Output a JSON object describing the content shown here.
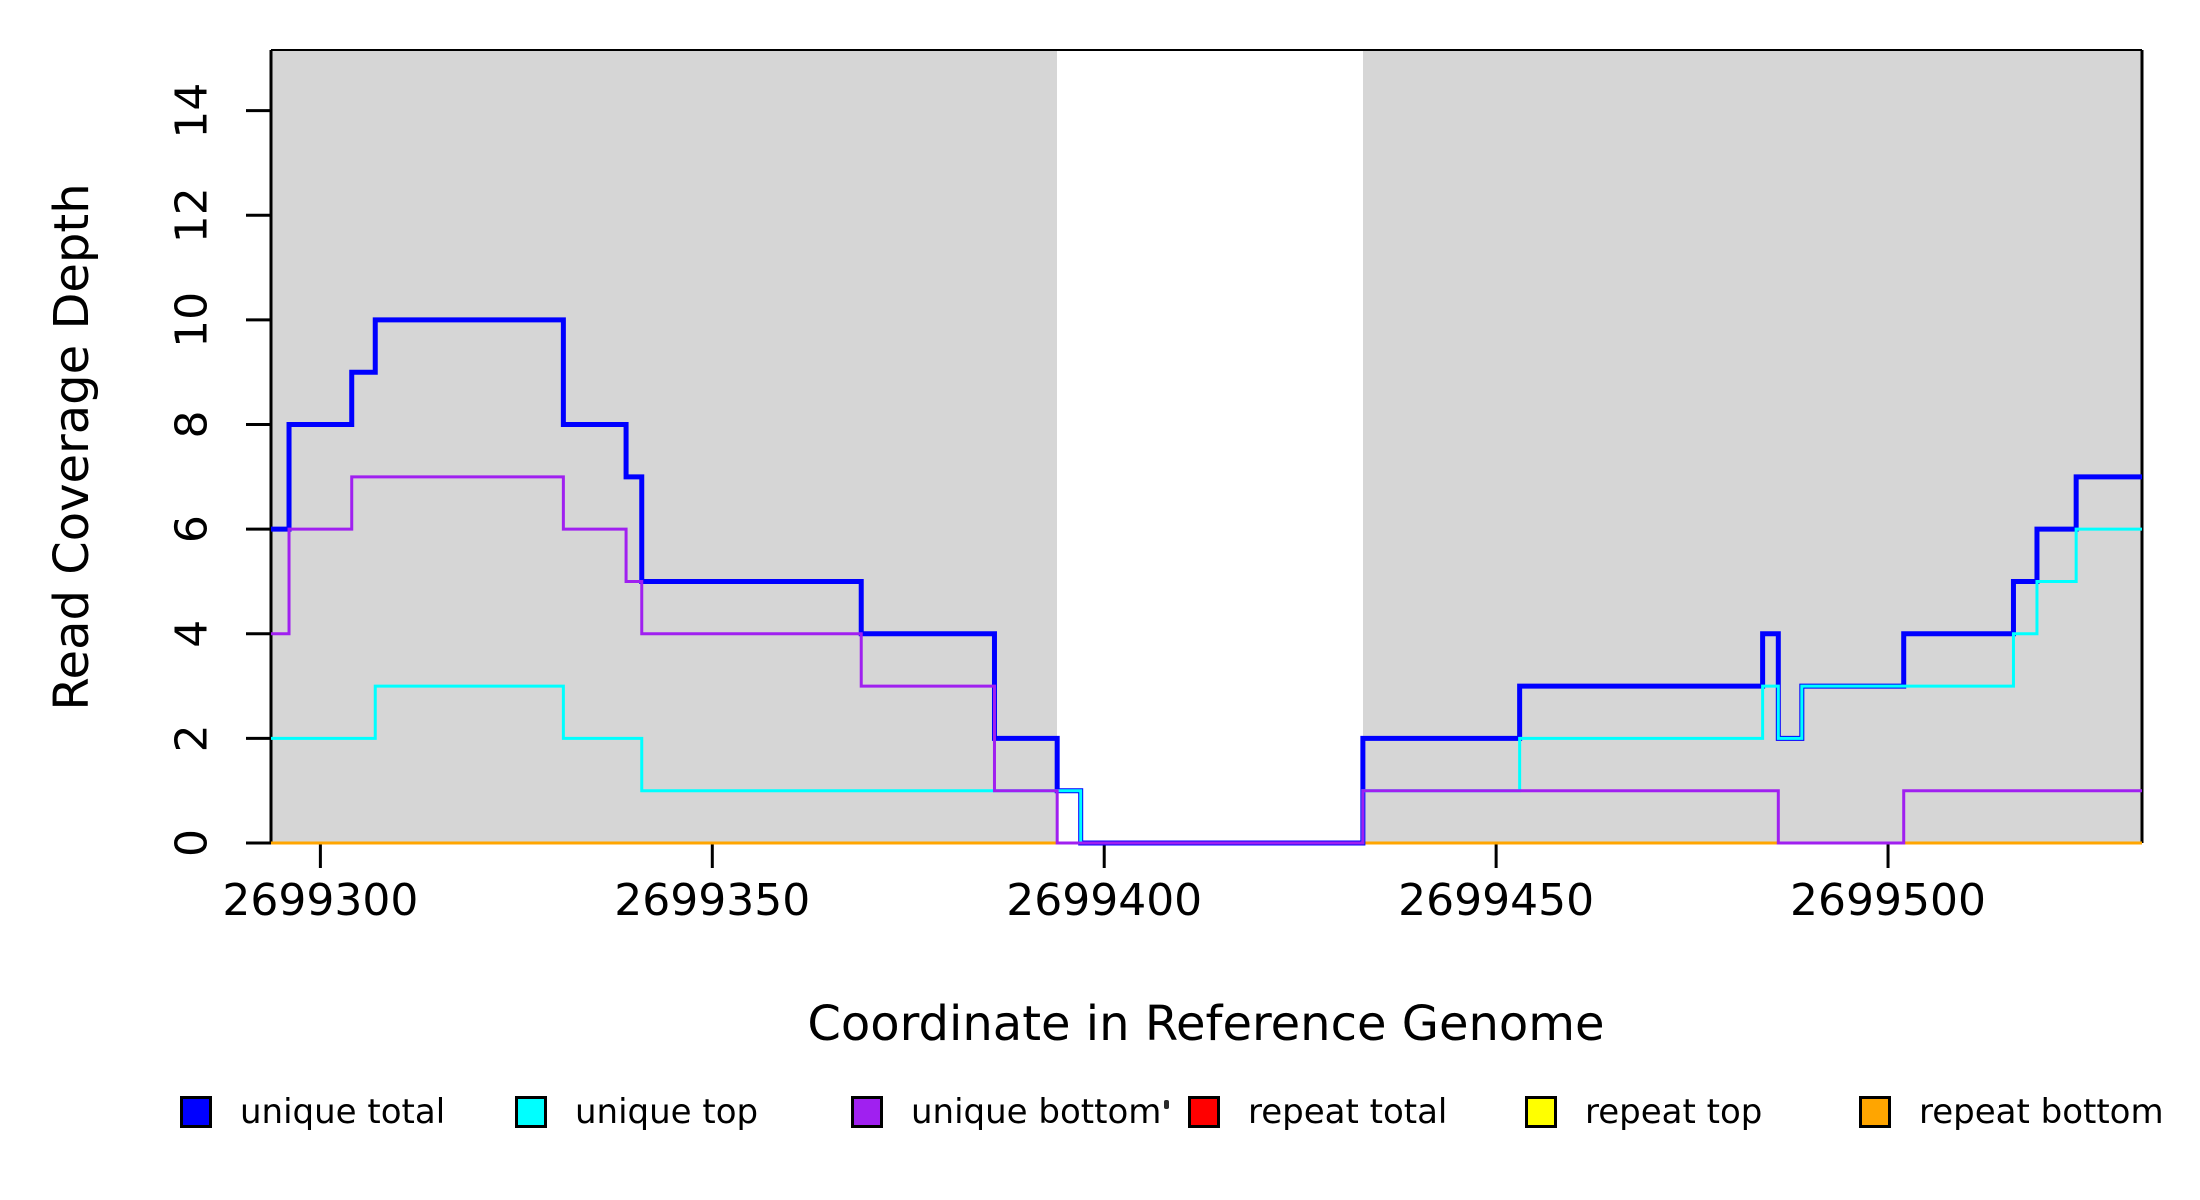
{
  "figure": {
    "background": "#FFFFFF"
  },
  "chart_data": {
    "type": "step-line",
    "title": "",
    "xlabel": "Coordinate in Reference Genome",
    "ylabel": "Read Coverage Depth",
    "xlim": [
      2699293.7,
      2699532.4
    ],
    "ylim": [
      0,
      15.16
    ],
    "grid": false,
    "legend_position": "bottom",
    "x_ticks": [
      {
        "value": 2699300,
        "label": "2699300"
      },
      {
        "value": 2699350,
        "label": "2699350"
      },
      {
        "value": 2699400,
        "label": "2699400"
      },
      {
        "value": 2699450,
        "label": "2699450"
      },
      {
        "value": 2699500,
        "label": "2699500"
      }
    ],
    "y_ticks": [
      {
        "value": 0,
        "label": "0"
      },
      {
        "value": 2,
        "label": "2"
      },
      {
        "value": 4,
        "label": "4"
      },
      {
        "value": 6,
        "label": "6"
      },
      {
        "value": 8,
        "label": "8"
      },
      {
        "value": 10,
        "label": "10"
      },
      {
        "value": 12,
        "label": "12"
      },
      {
        "value": 14,
        "label": "14"
      }
    ],
    "shaded_regions": [
      {
        "from": 2699293.7,
        "to": 2699394,
        "color": "#D6D6D6"
      },
      {
        "from": 2699433,
        "to": 2699532.4,
        "color": "#D6D6D6"
      }
    ],
    "series": [
      {
        "name": "unique total",
        "color": "#0000FF",
        "line_width": 5,
        "steps": [
          [
            2699294,
            6
          ],
          [
            2699296,
            8
          ],
          [
            2699304,
            9
          ],
          [
            2699307,
            10
          ],
          [
            2699331,
            8
          ],
          [
            2699339,
            7
          ],
          [
            2699341,
            5
          ],
          [
            2699369,
            4
          ],
          [
            2699386,
            2
          ],
          [
            2699394,
            1
          ],
          [
            2699397,
            0
          ],
          [
            2699433,
            2
          ],
          [
            2699453,
            3
          ],
          [
            2699484,
            4
          ],
          [
            2699486,
            2
          ],
          [
            2699489,
            3
          ],
          [
            2699502,
            4
          ],
          [
            2699516,
            5
          ],
          [
            2699519,
            6
          ],
          [
            2699524,
            7
          ]
        ]
      },
      {
        "name": "unique top",
        "color": "#00FFFF",
        "line_width": 3,
        "steps": [
          [
            2699294,
            2
          ],
          [
            2699307,
            3
          ],
          [
            2699331,
            2
          ],
          [
            2699341,
            1
          ],
          [
            2699397,
            0
          ],
          [
            2699433,
            1
          ],
          [
            2699453,
            2
          ],
          [
            2699484,
            3
          ],
          [
            2699486,
            2
          ],
          [
            2699489,
            3
          ],
          [
            2699516,
            4
          ],
          [
            2699519,
            5
          ],
          [
            2699524,
            6
          ]
        ]
      },
      {
        "name": "unique bottom",
        "color": "#A020F0",
        "line_width": 3,
        "steps": [
          [
            2699294,
            4
          ],
          [
            2699296,
            6
          ],
          [
            2699304,
            7
          ],
          [
            2699331,
            6
          ],
          [
            2699339,
            5
          ],
          [
            2699341,
            4
          ],
          [
            2699369,
            3
          ],
          [
            2699386,
            1
          ],
          [
            2699394,
            0
          ],
          [
            2699433,
            1
          ],
          [
            2699486,
            0
          ],
          [
            2699502,
            1
          ]
        ]
      },
      {
        "name": "repeat total",
        "color": "#FF0000",
        "line_width": 3,
        "steps": [
          [
            2699294,
            0
          ]
        ]
      },
      {
        "name": "repeat top",
        "color": "#FFFF00",
        "line_width": 3,
        "steps": [
          [
            2699294,
            0
          ]
        ]
      },
      {
        "name": "repeat bottom",
        "color": "#FFA500",
        "line_width": 3,
        "steps": [
          [
            2699294,
            0
          ]
        ],
        "draw_ranges": [
          [
            2699293.7,
            2699394
          ],
          [
            2699433,
            2699532.4
          ]
        ]
      }
    ]
  },
  "legend": {
    "items": [
      {
        "label": "unique total",
        "color": "#0000FF"
      },
      {
        "label": "unique top",
        "color": "#00FFFF"
      },
      {
        "label": "unique bottom",
        "color": "#A020F0"
      },
      {
        "label": "repeat total",
        "color": "#FF0000"
      },
      {
        "label": "repeat top",
        "color": "#FFFF00"
      },
      {
        "label": "repeat bottom",
        "color": "#FFA500"
      }
    ]
  }
}
